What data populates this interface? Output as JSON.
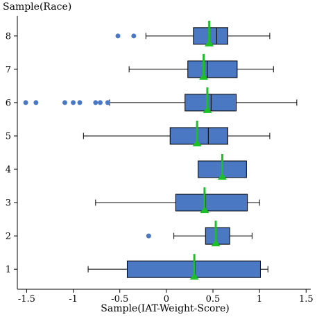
{
  "chart_data": {
    "type": "boxplot",
    "orientation": "horizontal",
    "ylabel": "Sample(Race)",
    "xlabel": "Sample(IAT-Weight-Score)",
    "xlim": [
      -1.6,
      1.55
    ],
    "ylim": [
      0.4,
      8.6
    ],
    "xticks": [
      -1.5,
      -1,
      -0.5,
      0,
      0.5,
      1,
      1.5
    ],
    "xtick_labels": [
      "-1.5",
      "-1",
      "-0.5",
      "0",
      "0.5",
      "1",
      "1.5"
    ],
    "yticks": [
      1,
      2,
      3,
      4,
      5,
      6,
      7,
      8
    ],
    "ytick_labels": [
      "1",
      "2",
      "3",
      "4",
      "5",
      "6",
      "7",
      "8"
    ],
    "grid": false,
    "colors": {
      "box": "#4a78c2",
      "outlier": "#4a78c2",
      "mean_marker": "#1bbf26",
      "whisker": "#000000"
    },
    "boxes": [
      {
        "category": "1",
        "whisker_low": -0.84,
        "q1": -0.42,
        "median": 0.31,
        "q3": 1.01,
        "whisker_high": 1.09,
        "mean": 0.3,
        "outliers": []
      },
      {
        "category": "2",
        "whisker_low": 0.08,
        "q1": 0.42,
        "median": 0.53,
        "q3": 0.68,
        "whisker_high": 0.92,
        "mean": 0.53,
        "outliers": [
          -0.19
        ]
      },
      {
        "category": "3",
        "whisker_low": -0.76,
        "q1": 0.1,
        "median": 0.42,
        "q3": 0.87,
        "whisker_high": 1.0,
        "mean": 0.41,
        "outliers": []
      },
      {
        "category": "4",
        "whisker_low": 0.34,
        "q1": 0.34,
        "median": 0.6,
        "q3": 0.86,
        "whisker_high": 0.86,
        "mean": 0.6,
        "outliers": []
      },
      {
        "category": "5",
        "whisker_low": -0.89,
        "q1": 0.04,
        "median": 0.45,
        "q3": 0.66,
        "whisker_high": 1.11,
        "mean": 0.33,
        "outliers": []
      },
      {
        "category": "6",
        "whisker_low": -0.61,
        "q1": 0.2,
        "median": 0.48,
        "q3": 0.75,
        "whisker_high": 1.4,
        "mean": 0.44,
        "outliers": [
          -1.51,
          -1.4,
          -1.09,
          -1.0,
          -0.93,
          -0.76,
          -0.71,
          -0.63
        ]
      },
      {
        "category": "7",
        "whisker_low": -0.4,
        "q1": 0.23,
        "median": 0.44,
        "q3": 0.76,
        "whisker_high": 1.15,
        "mean": 0.4,
        "outliers": []
      },
      {
        "category": "8",
        "whisker_low": -0.22,
        "q1": 0.29,
        "median": 0.54,
        "q3": 0.66,
        "whisker_high": 1.11,
        "mean": 0.46,
        "outliers": [
          -0.52,
          -0.35
        ]
      }
    ]
  }
}
